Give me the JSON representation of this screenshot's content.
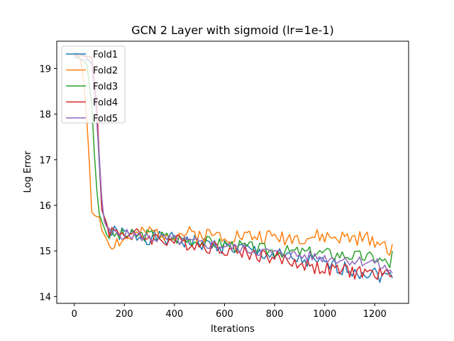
{
  "chart_data": {
    "type": "line",
    "title": "GCN 2 Layer with sigmoid (lr=1e-1)",
    "xlabel": "Iterations",
    "ylabel": "Log Error",
    "xlim": [
      -70,
      1335
    ],
    "ylim": [
      13.85,
      19.6
    ],
    "xticks": [
      0,
      200,
      400,
      600,
      800,
      1000,
      1200
    ],
    "yticks": [
      14,
      15,
      16,
      17,
      18,
      19
    ],
    "legend_position": "top-left",
    "grid": false,
    "series": [
      {
        "name": "Fold1",
        "color": "#1f77b4",
        "keypoints": [
          [
            0,
            19.35
          ],
          [
            40,
            19.3
          ],
          [
            70,
            19.1
          ],
          [
            90,
            17.9
          ],
          [
            110,
            15.9
          ],
          [
            140,
            15.4
          ],
          [
            300,
            15.3
          ],
          [
            600,
            15.1
          ],
          [
            800,
            14.9
          ],
          [
            1000,
            14.7
          ],
          [
            1200,
            14.5
          ],
          [
            1275,
            14.4
          ]
        ],
        "noise": 0.17,
        "seed": 1
      },
      {
        "name": "Fold2",
        "color": "#ff7f0e",
        "keypoints": [
          [
            0,
            19.3
          ],
          [
            25,
            19.25
          ],
          [
            40,
            18.6
          ],
          [
            55,
            17.5
          ],
          [
            70,
            15.85
          ],
          [
            85,
            15.75
          ],
          [
            100,
            15.75
          ],
          [
            110,
            15.45
          ],
          [
            140,
            15.15
          ],
          [
            300,
            15.4
          ],
          [
            600,
            15.35
          ],
          [
            800,
            15.3
          ],
          [
            1000,
            15.3
          ],
          [
            1200,
            15.25
          ],
          [
            1265,
            15.05
          ],
          [
            1275,
            15.25
          ]
        ],
        "noise": 0.17,
        "seed": 2
      },
      {
        "name": "Fold3",
        "color": "#2ca02c",
        "keypoints": [
          [
            0,
            19.3
          ],
          [
            50,
            19.1
          ],
          [
            70,
            18.2
          ],
          [
            85,
            16.6
          ],
          [
            100,
            15.8
          ],
          [
            130,
            15.35
          ],
          [
            300,
            15.35
          ],
          [
            600,
            15.15
          ],
          [
            800,
            15.0
          ],
          [
            1000,
            14.95
          ],
          [
            1200,
            14.85
          ],
          [
            1265,
            14.7
          ],
          [
            1275,
            15.3
          ]
        ],
        "noise": 0.14,
        "seed": 3
      },
      {
        "name": "Fold4",
        "color": "#d62728",
        "keypoints": [
          [
            0,
            19.3
          ],
          [
            70,
            19.25
          ],
          [
            90,
            18.2
          ],
          [
            110,
            15.9
          ],
          [
            140,
            15.45
          ],
          [
            300,
            15.3
          ],
          [
            600,
            15.05
          ],
          [
            800,
            14.85
          ],
          [
            1000,
            14.6
          ],
          [
            1200,
            14.5
          ],
          [
            1275,
            14.45
          ]
        ],
        "noise": 0.16,
        "seed": 4
      },
      {
        "name": "Fold5",
        "color": "#9467bd",
        "keypoints": [
          [
            0,
            19.25
          ],
          [
            70,
            19.15
          ],
          [
            95,
            17.5
          ],
          [
            115,
            15.7
          ],
          [
            140,
            15.4
          ],
          [
            300,
            15.3
          ],
          [
            600,
            15.1
          ],
          [
            800,
            14.95
          ],
          [
            1000,
            14.85
          ],
          [
            1200,
            14.75
          ],
          [
            1275,
            14.5
          ]
        ],
        "noise": 0.12,
        "seed": 5
      }
    ]
  }
}
